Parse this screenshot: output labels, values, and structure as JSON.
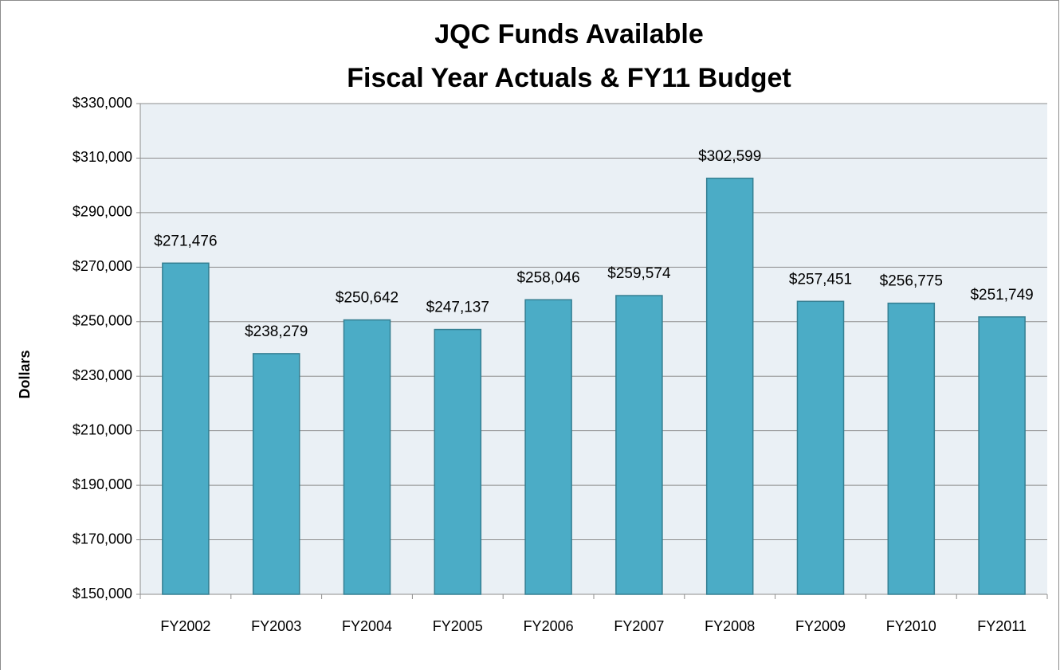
{
  "chart_data": {
    "type": "bar",
    "title": [
      "JQC Funds Available",
      "Fiscal Year Actuals & FY11 Budget"
    ],
    "y_label": "Dollars",
    "categories": [
      "FY2002",
      "FY2003",
      "FY2004",
      "FY2005",
      "FY2006",
      "FY2007",
      "FY2008",
      "FY2009",
      "FY2010",
      "FY2011"
    ],
    "values": [
      271476,
      238279,
      250642,
      247137,
      258046,
      259574,
      302599,
      257451,
      256775,
      251749
    ],
    "value_labels": [
      "$271,476",
      "$238,279",
      "$250,642",
      "$247,137",
      "$258,046",
      "$259,574",
      "$302,599",
      "$257,451",
      "$256,775",
      "$251,749"
    ],
    "color": "#4bacc6",
    "ylim": [
      150000,
      330000
    ],
    "yticks": [
      {
        "value": 150000,
        "label": "$150,000"
      },
      {
        "value": 170000,
        "label": "$170,000"
      },
      {
        "value": 190000,
        "label": "$190,000"
      },
      {
        "value": 210000,
        "label": "$210,000"
      },
      {
        "value": 230000,
        "label": "$230,000"
      },
      {
        "value": 250000,
        "label": "$250,000"
      },
      {
        "value": 270000,
        "label": "$270,000"
      },
      {
        "value": 290000,
        "label": "$290,000"
      },
      {
        "value": 310000,
        "label": "$310,000"
      },
      {
        "value": 330000,
        "label": "$330,000"
      }
    ],
    "grid": true
  }
}
